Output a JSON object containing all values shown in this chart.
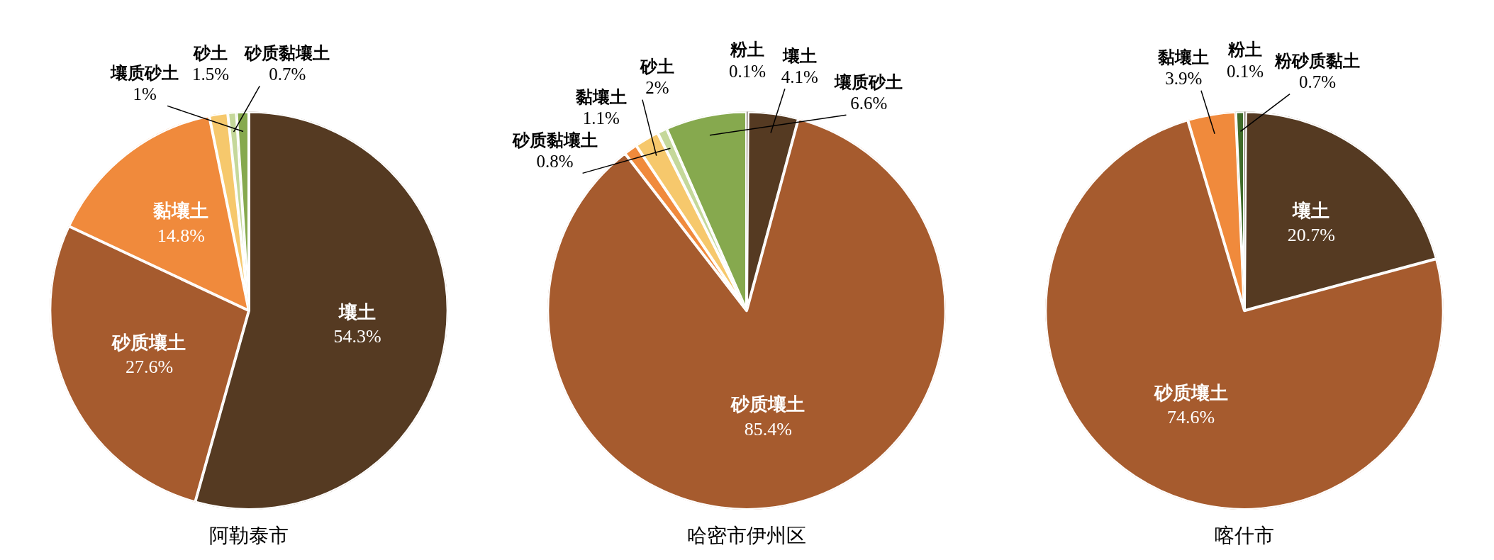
{
  "chart_data": [
    {
      "type": "pie",
      "title": "阿勒泰市",
      "categories": [
        "壤土",
        "砂质壤土",
        "黏壤土",
        "砂土",
        "砂质黏壤土",
        "壤质砂土"
      ],
      "values": [
        54.3,
        27.6,
        14.8,
        1.5,
        0.7,
        1
      ],
      "colors": [
        "#553a22",
        "#a65b2e",
        "#f08a3c",
        "#f6c86c",
        "#c5d89a",
        "#86a94e"
      ],
      "value_labels": [
        "54.3%",
        "27.6%",
        "14.8%",
        "1.5%",
        "0.7%",
        "1%"
      ],
      "legend": false
    },
    {
      "type": "pie",
      "title": "哈密市伊州区",
      "categories": [
        "粉土",
        "壤土",
        "砂质壤土",
        "黏壤土",
        "砂土",
        "砂质黏壤土",
        "壤质砂土"
      ],
      "values": [
        0.1,
        4.1,
        85.4,
        1.1,
        2,
        0.8,
        6.6
      ],
      "colors": [
        "#3a2a1a",
        "#553a22",
        "#a65b2e",
        "#f08a3c",
        "#f6c86c",
        "#c5d89a",
        "#86a94e"
      ],
      "value_labels": [
        "0.1%",
        "4.1%",
        "85.4%",
        "1.1%",
        "2%",
        "0.8%",
        "6.6%"
      ],
      "legend": false
    },
    {
      "type": "pie",
      "title": "喀什市",
      "categories": [
        "粉土",
        "壤土",
        "砂质壤土",
        "黏壤土",
        "粉砂质黏土"
      ],
      "values": [
        0.1,
        20.7,
        74.6,
        3.9,
        0.7
      ],
      "colors": [
        "#3a2a1a",
        "#553a22",
        "#a65b2e",
        "#f08a3c",
        "#3f6b2a"
      ],
      "value_labels": [
        "0.1%",
        "20.7%",
        "74.6%",
        "3.9%",
        "0.7%"
      ],
      "legend": false
    }
  ]
}
